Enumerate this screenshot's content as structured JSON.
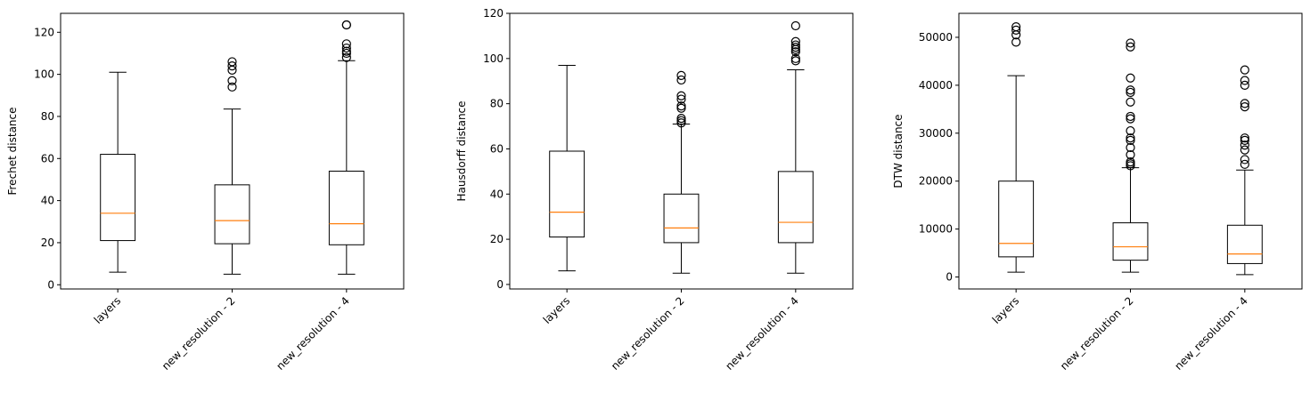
{
  "chart_data": [
    {
      "type": "box",
      "ylabel": "Frechet distance",
      "xlabel": "",
      "title": "",
      "categories": [
        "layers",
        "new_resolution - 2",
        "new_resolution - 4"
      ],
      "ylim": [
        -2,
        129
      ],
      "yticks": [
        0,
        20,
        40,
        60,
        80,
        100,
        120
      ],
      "boxes": [
        {
          "whisker_low": 6,
          "q1": 21,
          "median": 34,
          "q3": 62,
          "whisker_high": 101,
          "outliers": []
        },
        {
          "whisker_low": 5,
          "q1": 19.5,
          "median": 30.5,
          "q3": 47.5,
          "whisker_high": 83.5,
          "outliers": [
            94,
            97,
            102,
            104,
            106
          ]
        },
        {
          "whisker_low": 5,
          "q1": 19,
          "median": 29,
          "q3": 54,
          "whisker_high": 106.5,
          "outliers": [
            108,
            110,
            111,
            112.5,
            114.5,
            123.5,
            123.5
          ]
        }
      ]
    },
    {
      "type": "box",
      "ylabel": "Hausdorff distance",
      "xlabel": "",
      "title": "",
      "categories": [
        "layers",
        "new_resolution - 2",
        "new_resolution - 4"
      ],
      "ylim": [
        -2,
        120
      ],
      "yticks": [
        0,
        20,
        40,
        60,
        80,
        100,
        120
      ],
      "boxes": [
        {
          "whisker_low": 6,
          "q1": 21,
          "median": 32,
          "q3": 59,
          "whisker_high": 97,
          "outliers": []
        },
        {
          "whisker_low": 5,
          "q1": 18.5,
          "median": 25,
          "q3": 40,
          "whisker_high": 71,
          "outliers": [
            71.5,
            72.5,
            73.5,
            78,
            79,
            82,
            83.5,
            90.5,
            92.5
          ]
        },
        {
          "whisker_low": 5,
          "q1": 18.5,
          "median": 27.5,
          "q3": 50,
          "whisker_high": 95,
          "outliers": [
            99,
            100,
            103,
            104,
            105,
            106,
            107.5,
            114.5
          ]
        }
      ]
    },
    {
      "type": "box",
      "ylabel": "DTW distance",
      "xlabel": "",
      "title": "",
      "categories": [
        "layers",
        "new_resolution - 2",
        "new_resolution - 4"
      ],
      "ylim": [
        -2500,
        55000
      ],
      "yticks": [
        0,
        10000,
        20000,
        30000,
        40000,
        50000
      ],
      "boxes": [
        {
          "whisker_low": 1000,
          "q1": 4200,
          "median": 7000,
          "q3": 20000,
          "whisker_high": 42000,
          "outliers": [
            49000,
            50500,
            51500,
            52200
          ]
        },
        {
          "whisker_low": 1000,
          "q1": 3500,
          "median": 6300,
          "q3": 11300,
          "whisker_high": 22800,
          "outliers": [
            23200,
            23600,
            24000,
            25500,
            27000,
            28500,
            29000,
            30500,
            33000,
            33500,
            36500,
            38500,
            39000,
            41500,
            48000,
            48800
          ]
        },
        {
          "whisker_low": 500,
          "q1": 2800,
          "median": 4800,
          "q3": 10800,
          "whisker_high": 22300,
          "outliers": [
            23500,
            24500,
            26500,
            27500,
            28500,
            29000,
            35500,
            36200,
            40000,
            41000,
            43200
          ]
        }
      ]
    }
  ],
  "colors": {
    "box": "#000000",
    "median": "#ff7f0e",
    "outlier": "#000000",
    "background": "#ffffff"
  }
}
